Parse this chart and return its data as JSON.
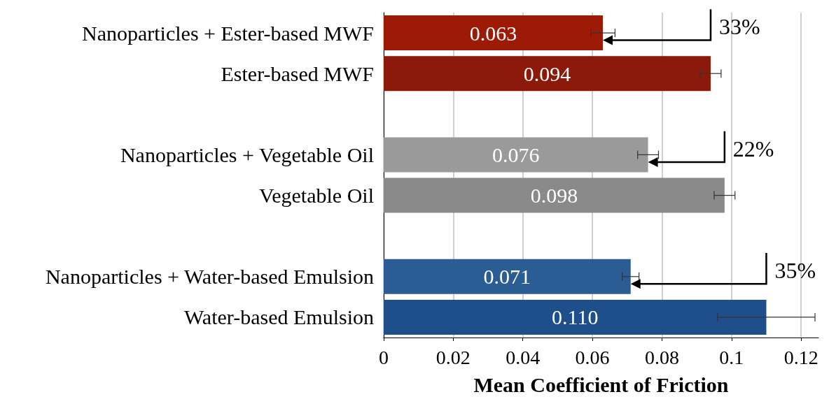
{
  "chart_data": {
    "type": "bar",
    "orientation": "horizontal",
    "xlabel": "Mean Coefficient of Friction",
    "categories": [
      "Nanoparticles + Ester-based MWF",
      "Ester-based MWF",
      null,
      "Nanoparticles + Vegetable Oil",
      "Vegetable Oil",
      null,
      "Nanoparticles + Water-based Emulsion",
      "Water-based Emulsion"
    ],
    "values": [
      0.063,
      0.094,
      null,
      0.076,
      0.098,
      null,
      0.071,
      0.11
    ],
    "value_labels": [
      "0.063",
      "0.094",
      null,
      "0.076",
      "0.098",
      null,
      "0.071",
      "0.110"
    ],
    "errors": [
      0.0035,
      0.003,
      null,
      0.003,
      0.003,
      null,
      0.0024,
      0.014
    ],
    "colors": [
      "#9c1a06",
      "#8b1a0b",
      null,
      "#9a9a9a",
      "#8a8a8a",
      null,
      "#2b5c94",
      "#1f4f8a"
    ],
    "xlim": [
      0,
      0.125
    ],
    "xticks": [
      0,
      0.02,
      0.04,
      0.06,
      0.08,
      0.1,
      0.12
    ],
    "grid": "x",
    "annotations": [
      {
        "text": "33%",
        "x": 0.094,
        "y": "Ester-based MWF"
      },
      {
        "text": "22%",
        "x": 0.098,
        "y": "Vegetable Oil"
      },
      {
        "text": "35%",
        "x": 0.11,
        "y": "Water-based Emulsion"
      }
    ]
  }
}
